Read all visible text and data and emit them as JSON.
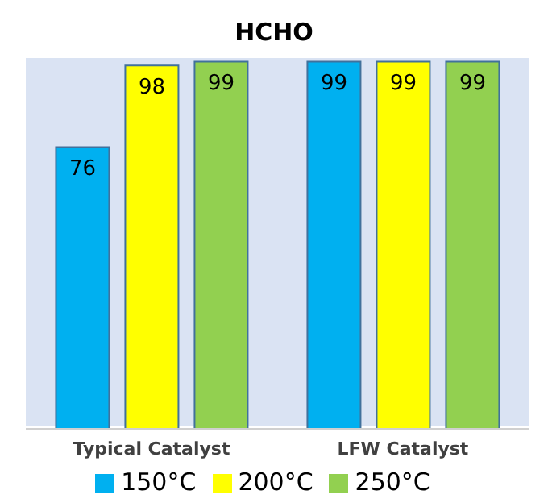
{
  "chart_data": {
    "type": "bar",
    "title": "HCHO",
    "categories": [
      "Typical Catalyst",
      "LFW Catalyst"
    ],
    "series": [
      {
        "name": "150°C",
        "color": "#00b0f0",
        "values": [
          76,
          99
        ]
      },
      {
        "name": "200°C",
        "color": "#ffff00",
        "values": [
          98,
          99
        ]
      },
      {
        "name": "250°C",
        "color": "#92d050",
        "values": [
          99,
          99
        ]
      }
    ],
    "ylim": [
      0,
      100
    ],
    "tick_labels": "x",
    "data_labels": true,
    "legend": "bottom"
  }
}
